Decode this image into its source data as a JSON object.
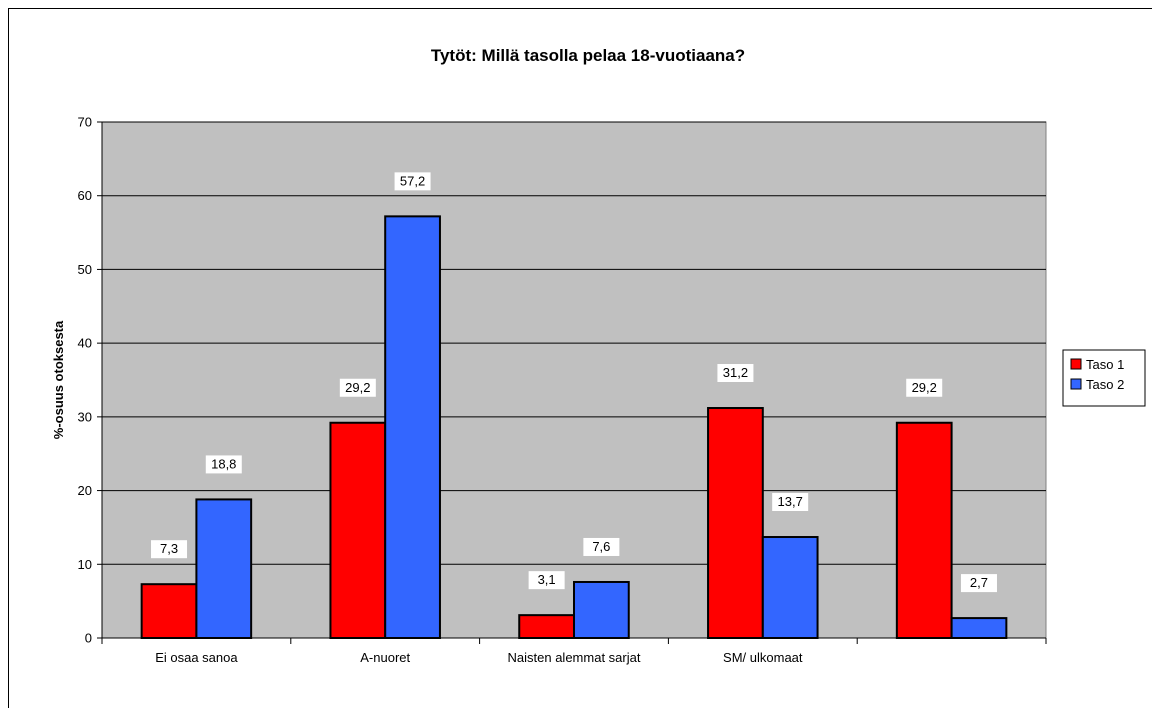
{
  "chart_data": {
    "type": "bar",
    "title": "Tytöt: Millä tasolla pelaa 18-vuotiaana?",
    "xlabel": "",
    "ylabel": "%-osuus otoksesta",
    "ylim": [
      0,
      70
    ],
    "yticks": [
      0,
      10,
      20,
      30,
      40,
      50,
      60,
      70
    ],
    "categories": [
      "Ei osaa sanoa",
      "A-nuoret",
      "Naisten alemmat sarjat",
      "SM/ ulkomaat",
      ""
    ],
    "series": [
      {
        "name": "Taso 1",
        "color": "#ff0000",
        "values": [
          7.3,
          29.2,
          3.1,
          31.2,
          29.2
        ],
        "labels": [
          "7,3",
          "29,2",
          "3,1",
          "31,2",
          "29,2"
        ]
      },
      {
        "name": "Taso 2",
        "color": "#3366ff",
        "values": [
          18.8,
          57.2,
          7.6,
          13.7,
          2.7
        ],
        "labels": [
          "18,8",
          "57,2",
          "7,6",
          "13,7",
          "2,7"
        ]
      }
    ],
    "grid": true,
    "legend": "right",
    "plot_background": "#c0c0c0"
  }
}
